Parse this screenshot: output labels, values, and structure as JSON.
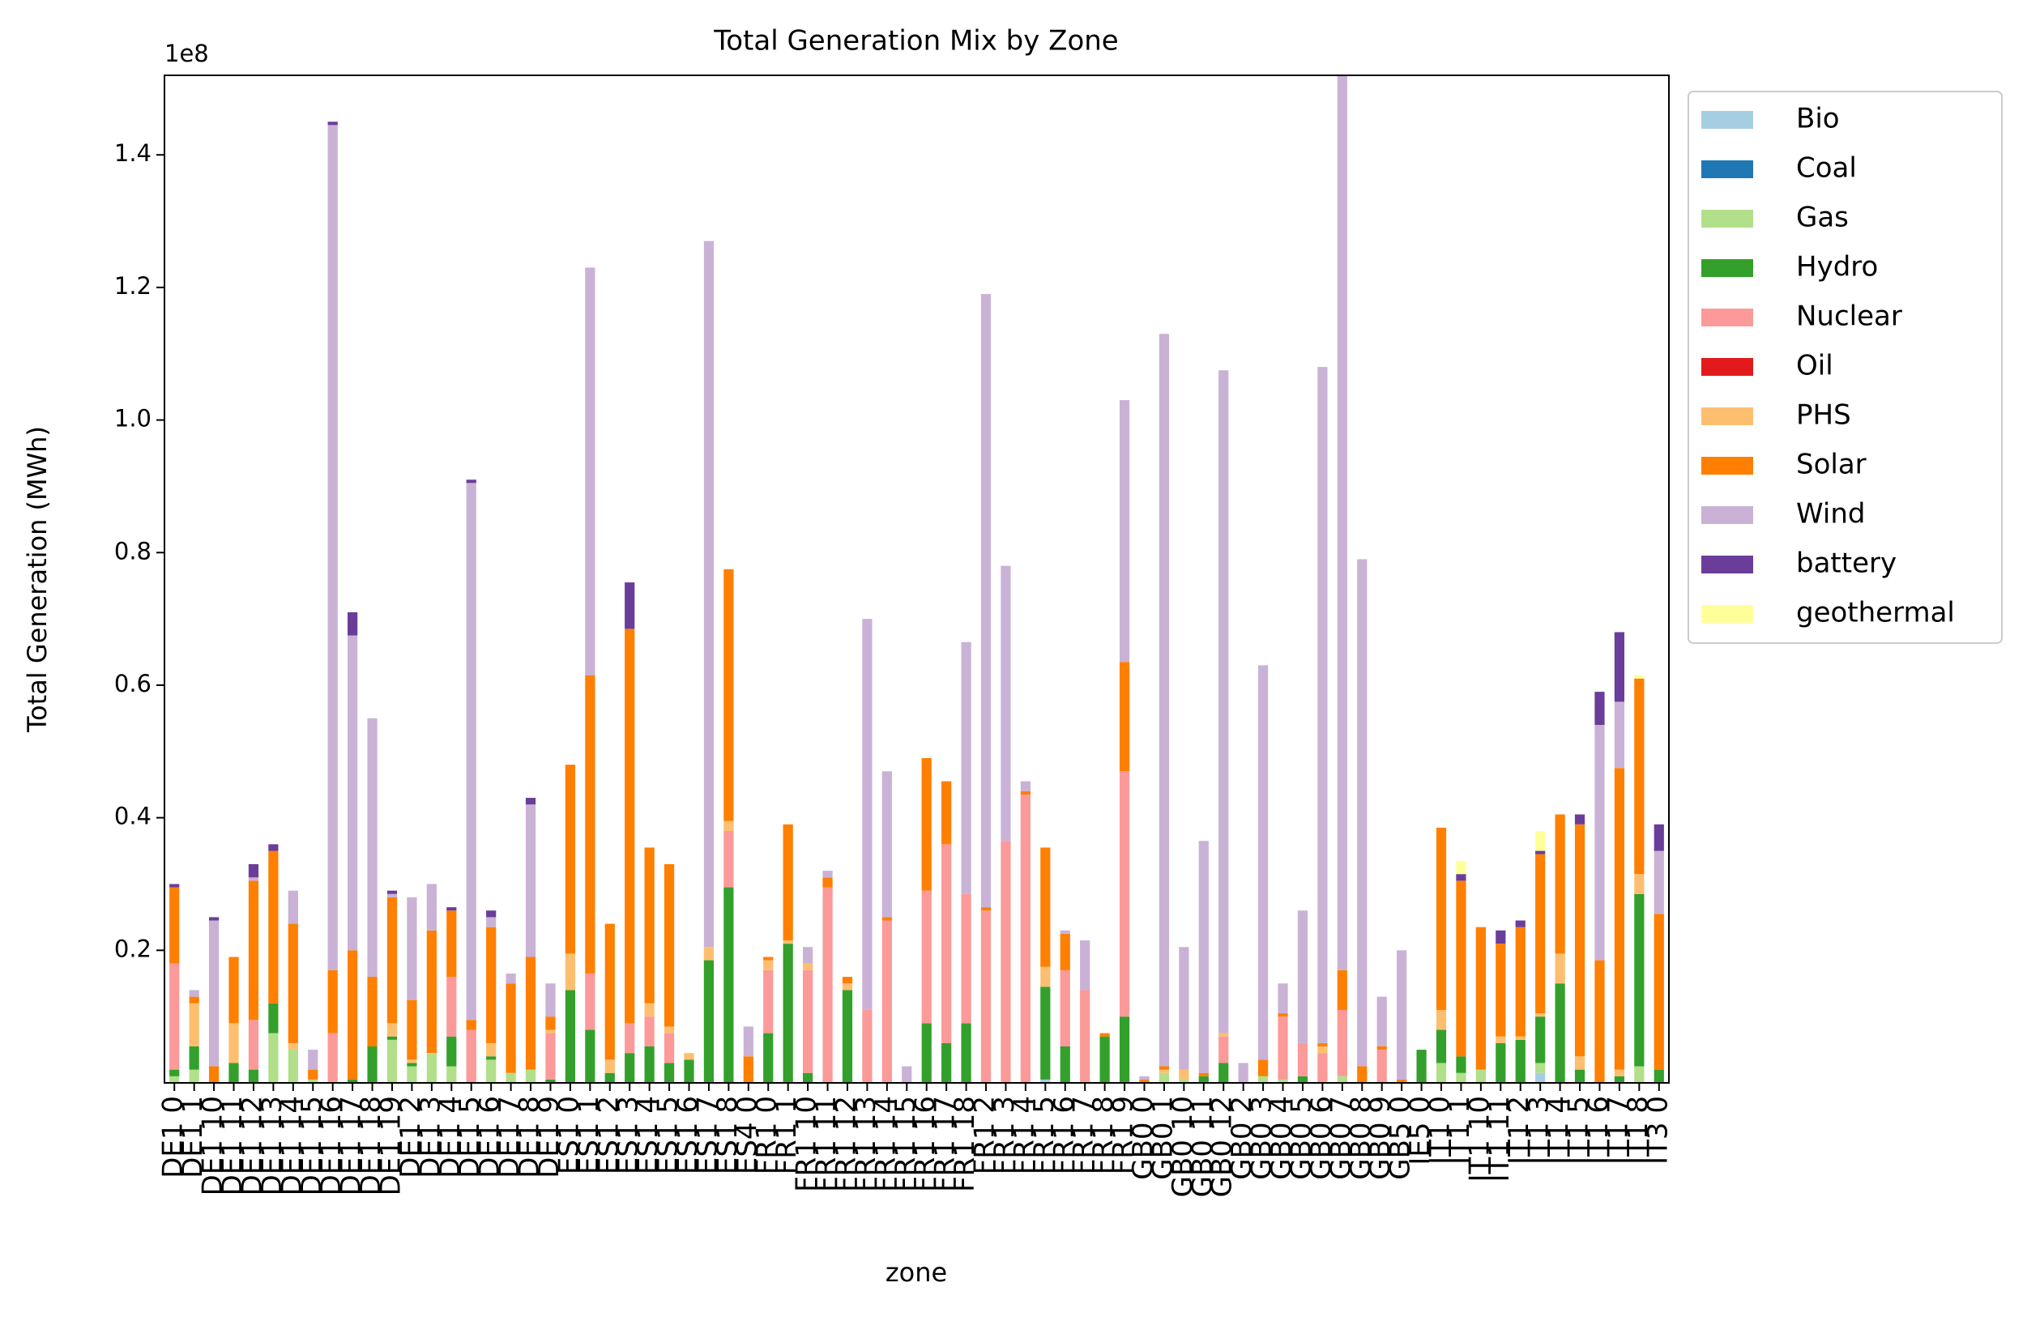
{
  "chart_data": {
    "type": "stacked_bar",
    "title": "Total Generation Mix by Zone",
    "x_label": "zone",
    "y_label": "Total Generation (MWh)",
    "y_offset_label": "1e8",
    "categories": [
      "DE1 0",
      "DE1 1",
      "DE1 10",
      "DE1 11",
      "DE1 12",
      "DE1 13",
      "DE1 14",
      "DE1 15",
      "DE1 16",
      "DE1 17",
      "DE1 18",
      "DE1 19",
      "DE1 2",
      "DE1 3",
      "DE1 4",
      "DE1 5",
      "DE1 6",
      "DE1 7",
      "DE1 8",
      "DE1 9",
      "ES1 0",
      "ES1 1",
      "ES1 2",
      "ES1 3",
      "ES1 4",
      "ES1 5",
      "ES1 6",
      "ES1 7",
      "ES1 8",
      "ES4 0",
      "FR1 0",
      "FR1 1",
      "FR1 10",
      "FR1 11",
      "FR1 12",
      "FR1 13",
      "FR1 14",
      "FR1 15",
      "FR1 16",
      "FR1 17",
      "FR1 18",
      "FR1 2",
      "FR1 3",
      "FR1 4",
      "FR1 5",
      "FR1 6",
      "FR1 7",
      "FR1 8",
      "FR1 9",
      "GB0 0",
      "GB0 1",
      "GB0 10",
      "GB0 11",
      "GB0 12",
      "GB0 2",
      "GB0 3",
      "GB0 4",
      "GB0 5",
      "GB0 6",
      "GB0 7",
      "GB0 8",
      "GB0 9",
      "GB5 0",
      "IE5 0",
      "IT1 0",
      "IT1 1",
      "IT1 10",
      "IT1 11",
      "IT1 2",
      "IT1 3",
      "IT1 4",
      "IT1 5",
      "IT1 6",
      "IT1 7",
      "IT1 8",
      "IT3 0"
    ],
    "series": [
      {
        "name": "Bio",
        "color": "#a6cee3",
        "values": [
          0,
          0,
          0,
          0,
          0,
          0,
          0,
          0,
          0,
          0,
          0,
          0,
          0,
          0,
          0,
          0,
          0,
          0,
          0,
          0,
          0,
          0,
          0,
          0,
          0,
          0,
          0,
          0,
          0,
          0,
          0,
          0,
          0,
          0,
          0,
          0,
          0,
          0,
          0,
          0,
          0,
          0,
          0,
          0,
          0.005,
          0,
          0,
          0,
          0,
          0,
          0,
          0,
          0,
          0,
          0,
          0,
          0,
          0,
          0,
          0,
          0,
          0,
          0,
          0,
          0,
          0,
          0,
          0,
          0,
          0.015,
          0,
          0,
          0,
          0,
          0,
          0
        ]
      },
      {
        "name": "Coal",
        "color": "#1f78b4",
        "values": [
          0,
          0,
          0,
          0,
          0,
          0,
          0,
          0,
          0,
          0,
          0,
          0,
          0,
          0,
          0,
          0,
          0,
          0,
          0,
          0,
          0,
          0,
          0,
          0,
          0,
          0,
          0,
          0,
          0,
          0,
          0,
          0,
          0,
          0,
          0,
          0,
          0,
          0,
          0,
          0,
          0,
          0,
          0,
          0,
          0,
          0,
          0,
          0,
          0,
          0,
          0,
          0,
          0,
          0,
          0,
          0,
          0,
          0,
          0,
          0,
          0,
          0,
          0,
          0,
          0,
          0,
          0,
          0,
          0,
          0,
          0,
          0,
          0,
          0,
          0,
          0
        ]
      },
      {
        "name": "Gas",
        "color": "#b2df8a",
        "values": [
          0.01,
          0.02,
          0,
          0,
          0,
          0.075,
          0.05,
          0.005,
          0,
          0,
          0,
          0.065,
          0.025,
          0.045,
          0.025,
          0,
          0.035,
          0.015,
          0.02,
          0,
          0,
          0,
          0,
          0,
          0,
          0,
          0,
          0,
          0,
          0,
          0,
          0,
          0,
          0,
          0,
          0,
          0,
          0,
          0,
          0,
          0,
          0,
          0,
          0,
          0,
          0,
          0,
          0,
          0,
          0,
          0.015,
          0.005,
          0,
          0,
          0,
          0.01,
          0.005,
          0,
          0,
          0.01,
          0,
          0,
          0,
          0,
          0.03,
          0.015,
          0.02,
          0,
          0,
          0.015,
          0,
          0,
          0,
          0,
          0.025,
          0
        ]
      },
      {
        "name": "Hydro",
        "color": "#33a02c",
        "values": [
          0.01,
          0.035,
          0,
          0.03,
          0.02,
          0.045,
          0,
          0,
          0,
          0.005,
          0.055,
          0.005,
          0.005,
          0,
          0.045,
          0,
          0.005,
          0,
          0,
          0.005,
          0.14,
          0.08,
          0.015,
          0.045,
          0.055,
          0.03,
          0.035,
          0.185,
          0.295,
          0,
          0.075,
          0.21,
          0.015,
          0,
          0.14,
          0,
          0,
          0,
          0.09,
          0.06,
          0.09,
          0,
          0,
          0,
          0.14,
          0.055,
          0,
          0.07,
          0.1,
          0,
          0,
          0,
          0.01,
          0.03,
          0,
          0,
          0,
          0.01,
          0,
          0,
          0,
          0,
          0,
          0.05,
          0.05,
          0.025,
          0,
          0.06,
          0.065,
          0.07,
          0.15,
          0.02,
          0,
          0.01,
          0.26,
          0.02
        ]
      },
      {
        "name": "Nuclear",
        "color": "#fb9a99",
        "values": [
          0.16,
          0,
          0,
          0,
          0.075,
          0,
          0,
          0,
          0.075,
          0,
          0,
          0,
          0,
          0,
          0.09,
          0.08,
          0,
          0,
          0,
          0.07,
          0,
          0.085,
          0,
          0.045,
          0.045,
          0.045,
          0,
          0,
          0.085,
          0,
          0.095,
          0,
          0.155,
          0.295,
          0,
          0.11,
          0.245,
          0,
          0.2,
          0.3,
          0.195,
          0.26,
          0.365,
          0.435,
          0,
          0.115,
          0.14,
          0,
          0.37,
          0,
          0,
          0,
          0,
          0.04,
          0,
          0,
          0.095,
          0.05,
          0.045,
          0.1,
          0,
          0.05,
          0,
          0,
          0,
          0,
          0,
          0,
          0,
          0,
          0,
          0,
          0,
          0,
          0,
          0
        ]
      },
      {
        "name": "Oil",
        "color": "#e31a1c",
        "values": [
          0,
          0,
          0,
          0,
          0,
          0,
          0,
          0,
          0,
          0,
          0,
          0,
          0,
          0,
          0,
          0,
          0,
          0,
          0,
          0,
          0,
          0,
          0,
          0,
          0,
          0,
          0,
          0,
          0,
          0,
          0,
          0,
          0,
          0,
          0,
          0,
          0,
          0,
          0,
          0,
          0,
          0,
          0,
          0,
          0,
          0,
          0,
          0,
          0,
          0,
          0,
          0,
          0,
          0,
          0,
          0,
          0,
          0,
          0,
          0,
          0,
          0,
          0,
          0,
          0,
          0,
          0,
          0,
          0,
          0,
          0,
          0,
          0,
          0,
          0,
          0
        ]
      },
      {
        "name": "PHS",
        "color": "#fdbf6f",
        "values": [
          0,
          0.065,
          0,
          0.06,
          0,
          0,
          0.01,
          0,
          0,
          0,
          0,
          0.02,
          0.005,
          0,
          0,
          0,
          0.02,
          0,
          0,
          0.005,
          0.055,
          0,
          0.02,
          0,
          0.02,
          0.01,
          0.01,
          0.02,
          0.015,
          0,
          0.015,
          0.005,
          0.01,
          0,
          0.01,
          0,
          0,
          0,
          0,
          0,
          0,
          0,
          0,
          0,
          0.03,
          0,
          0,
          0,
          0,
          0,
          0.005,
          0.015,
          0,
          0.005,
          0,
          0,
          0,
          0,
          0.01,
          0,
          0,
          0,
          0,
          0,
          0.03,
          0,
          0,
          0.01,
          0.005,
          0.005,
          0.045,
          0.02,
          0,
          0.01,
          0.03,
          0
        ]
      },
      {
        "name": "Solar",
        "color": "#ff7f00",
        "values": [
          0.115,
          0.01,
          0.025,
          0.1,
          0.21,
          0.23,
          0.18,
          0.015,
          0.095,
          0.195,
          0.105,
          0.19,
          0.09,
          0.185,
          0.1,
          0.015,
          0.175,
          0.135,
          0.17,
          0.02,
          0.285,
          0.45,
          0.205,
          0.595,
          0.235,
          0.245,
          0,
          0,
          0.38,
          0.04,
          0.005,
          0.175,
          0,
          0.015,
          0.01,
          0,
          0.005,
          0,
          0.2,
          0.095,
          0,
          0.005,
          0,
          0.005,
          0.18,
          0.055,
          0,
          0.005,
          0.165,
          0.005,
          0.005,
          0,
          0.005,
          0,
          0,
          0.025,
          0.005,
          0,
          0.005,
          0.06,
          0.025,
          0.005,
          0.005,
          0,
          0.275,
          0.265,
          0.215,
          0.14,
          0.165,
          0.24,
          0.21,
          0.35,
          0.185,
          0.455,
          0.295,
          0.235
        ]
      },
      {
        "name": "Wind",
        "color": "#cab2d6",
        "values": [
          0,
          0.01,
          0.22,
          0,
          0.005,
          0,
          0.05,
          0.03,
          1.275,
          0.475,
          0.39,
          0.005,
          0.155,
          0.07,
          0,
          0.81,
          0.015,
          0.015,
          0.23,
          0.05,
          0,
          0.615,
          0,
          0,
          0,
          0,
          0,
          1.065,
          0,
          0.045,
          0,
          0,
          0.025,
          0.01,
          0,
          0.59,
          0.22,
          0.025,
          0,
          0,
          0.38,
          0.925,
          0.415,
          0.015,
          0,
          0.005,
          0.075,
          0,
          0.395,
          0.005,
          1.105,
          0.185,
          0.35,
          1.0,
          0.03,
          0.595,
          0.045,
          0.2,
          1.02,
          1.35,
          0.765,
          0.075,
          0.195,
          0,
          0,
          0,
          0,
          0,
          0,
          0,
          0,
          0,
          0.355,
          0.1,
          0,
          0.095
        ]
      },
      {
        "name": "battery",
        "color": "#6a3d9a",
        "values": [
          0.005,
          0,
          0.005,
          0,
          0.02,
          0.01,
          0,
          0,
          0.005,
          0.035,
          0,
          0.005,
          0,
          0,
          0.005,
          0.005,
          0.01,
          0,
          0.01,
          0,
          0,
          0,
          0,
          0.07,
          0,
          0,
          0,
          0,
          0,
          0,
          0,
          0,
          0,
          0,
          0,
          0,
          0,
          0,
          0,
          0,
          0,
          0,
          0,
          0,
          0,
          0,
          0,
          0,
          0,
          0,
          0,
          0,
          0,
          0,
          0,
          0,
          0,
          0,
          0,
          0,
          0,
          0,
          0,
          0,
          0,
          0.01,
          0,
          0.02,
          0.01,
          0.005,
          0,
          0.015,
          0.05,
          0.105,
          0,
          0.04
        ]
      },
      {
        "name": "geothermal",
        "color": "#ffff99",
        "values": [
          0,
          0,
          0,
          0,
          0,
          0,
          0,
          0,
          0,
          0,
          0,
          0,
          0,
          0,
          0,
          0,
          0,
          0,
          0,
          0,
          0,
          0,
          0,
          0,
          0,
          0,
          0,
          0,
          0,
          0,
          0,
          0,
          0,
          0,
          0,
          0,
          0,
          0,
          0,
          0,
          0,
          0,
          0,
          0,
          0,
          0,
          0,
          0,
          0,
          0,
          0,
          0,
          0,
          0,
          0,
          0,
          0,
          0,
          0,
          0,
          0,
          0,
          0,
          0,
          0,
          0.02,
          0,
          0,
          0,
          0.03,
          0,
          0,
          0,
          0,
          0.005,
          0
        ]
      }
    ],
    "ylim": [
      0,
      1.52
    ],
    "yticks": [
      0.2,
      0.4,
      0.6,
      0.8,
      {
        "value": 1,
        "label": "1.0"
      },
      1.2,
      1.4
    ],
    "legend_position": "outside-right"
  }
}
